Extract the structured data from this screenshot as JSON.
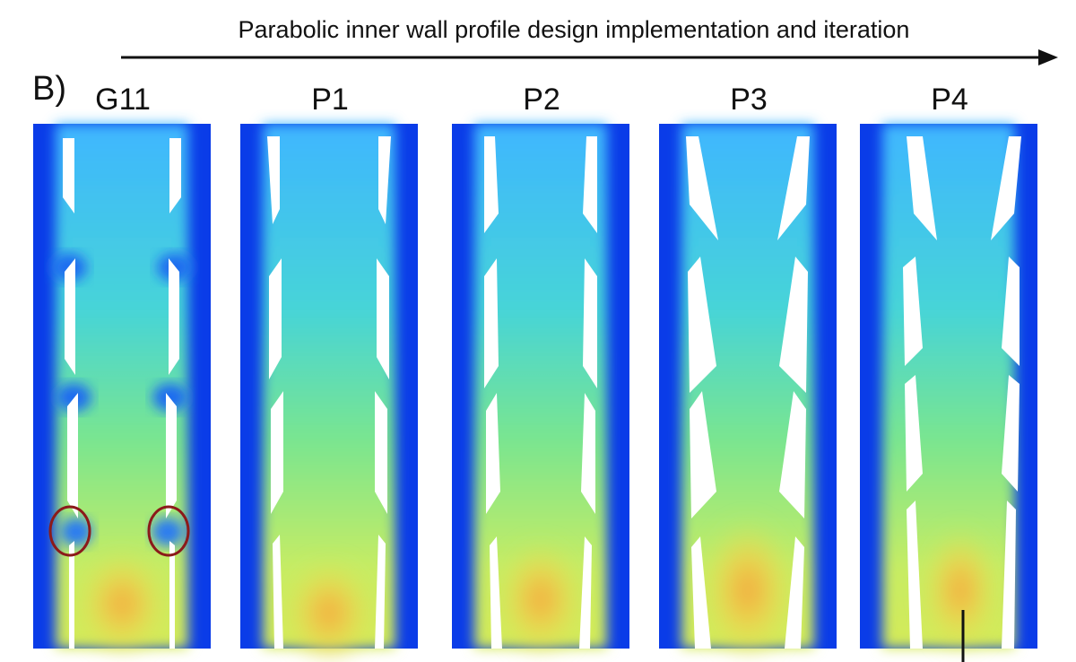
{
  "figure": {
    "panel_letter": "B)",
    "arrow_title": "Parabolic inner wall profile design implementation and iteration",
    "panels": [
      {
        "label": "G11",
        "wall_profile": "straight",
        "highlight_circles": true
      },
      {
        "label": "P1",
        "wall_profile": "parabolic",
        "highlight_circles": false
      },
      {
        "label": "P2",
        "wall_profile": "parabolic",
        "highlight_circles": false
      },
      {
        "label": "P3",
        "wall_profile": "parabolic",
        "highlight_circles": false
      },
      {
        "label": "P4",
        "wall_profile": "parabolic",
        "highlight_circles": false
      }
    ],
    "colors": {
      "background_flow": "#0a3ce8",
      "core_flow": "#7fe39a",
      "hot_spot": "#f39a2a",
      "highlight": "#8b1a1a"
    }
  }
}
